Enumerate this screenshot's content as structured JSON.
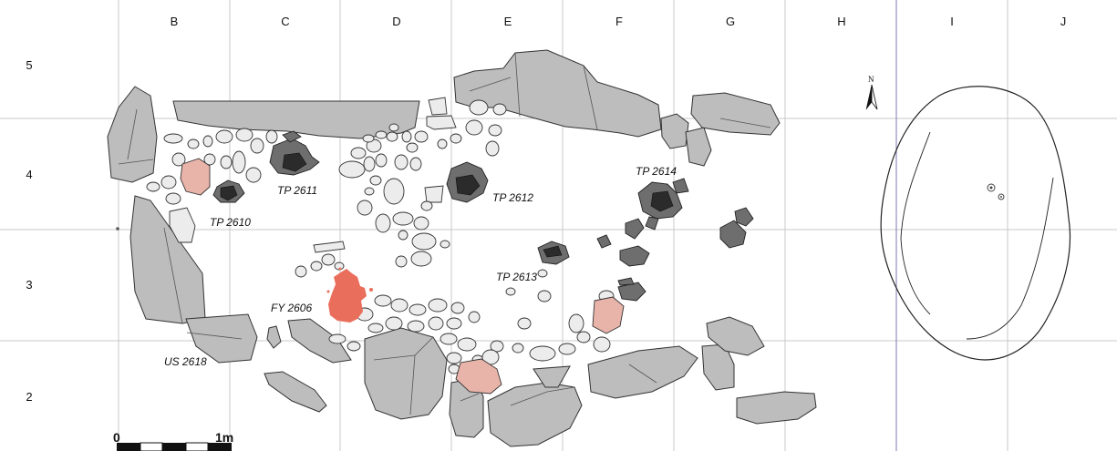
{
  "grid": {
    "columns": [
      "B",
      "C",
      "D",
      "E",
      "F",
      "G",
      "H",
      "I",
      "J"
    ],
    "rows": [
      "5",
      "4",
      "3",
      "2"
    ]
  },
  "features": {
    "tp2610": "TP 2610",
    "tp2611": "TP 2611",
    "tp2612": "TP 2612",
    "tp2613": "TP 2613",
    "tp2614": "TP 2614",
    "fy2606": "FY 2606",
    "us2618": "US 2618"
  },
  "scale_bar": {
    "start": "0",
    "end": "1m"
  },
  "north_arrow": {
    "label": "N"
  },
  "colors": {
    "grid_line": "#c8c8c8",
    "stone_light": "#ececec",
    "stone_mid": "#bdbdbd",
    "stone_dark": "#6e6e6e",
    "posthole_core": "#2b2b2b",
    "burnt_pink": "#e8b3a8",
    "hearth_red": "#ea6e5c"
  }
}
